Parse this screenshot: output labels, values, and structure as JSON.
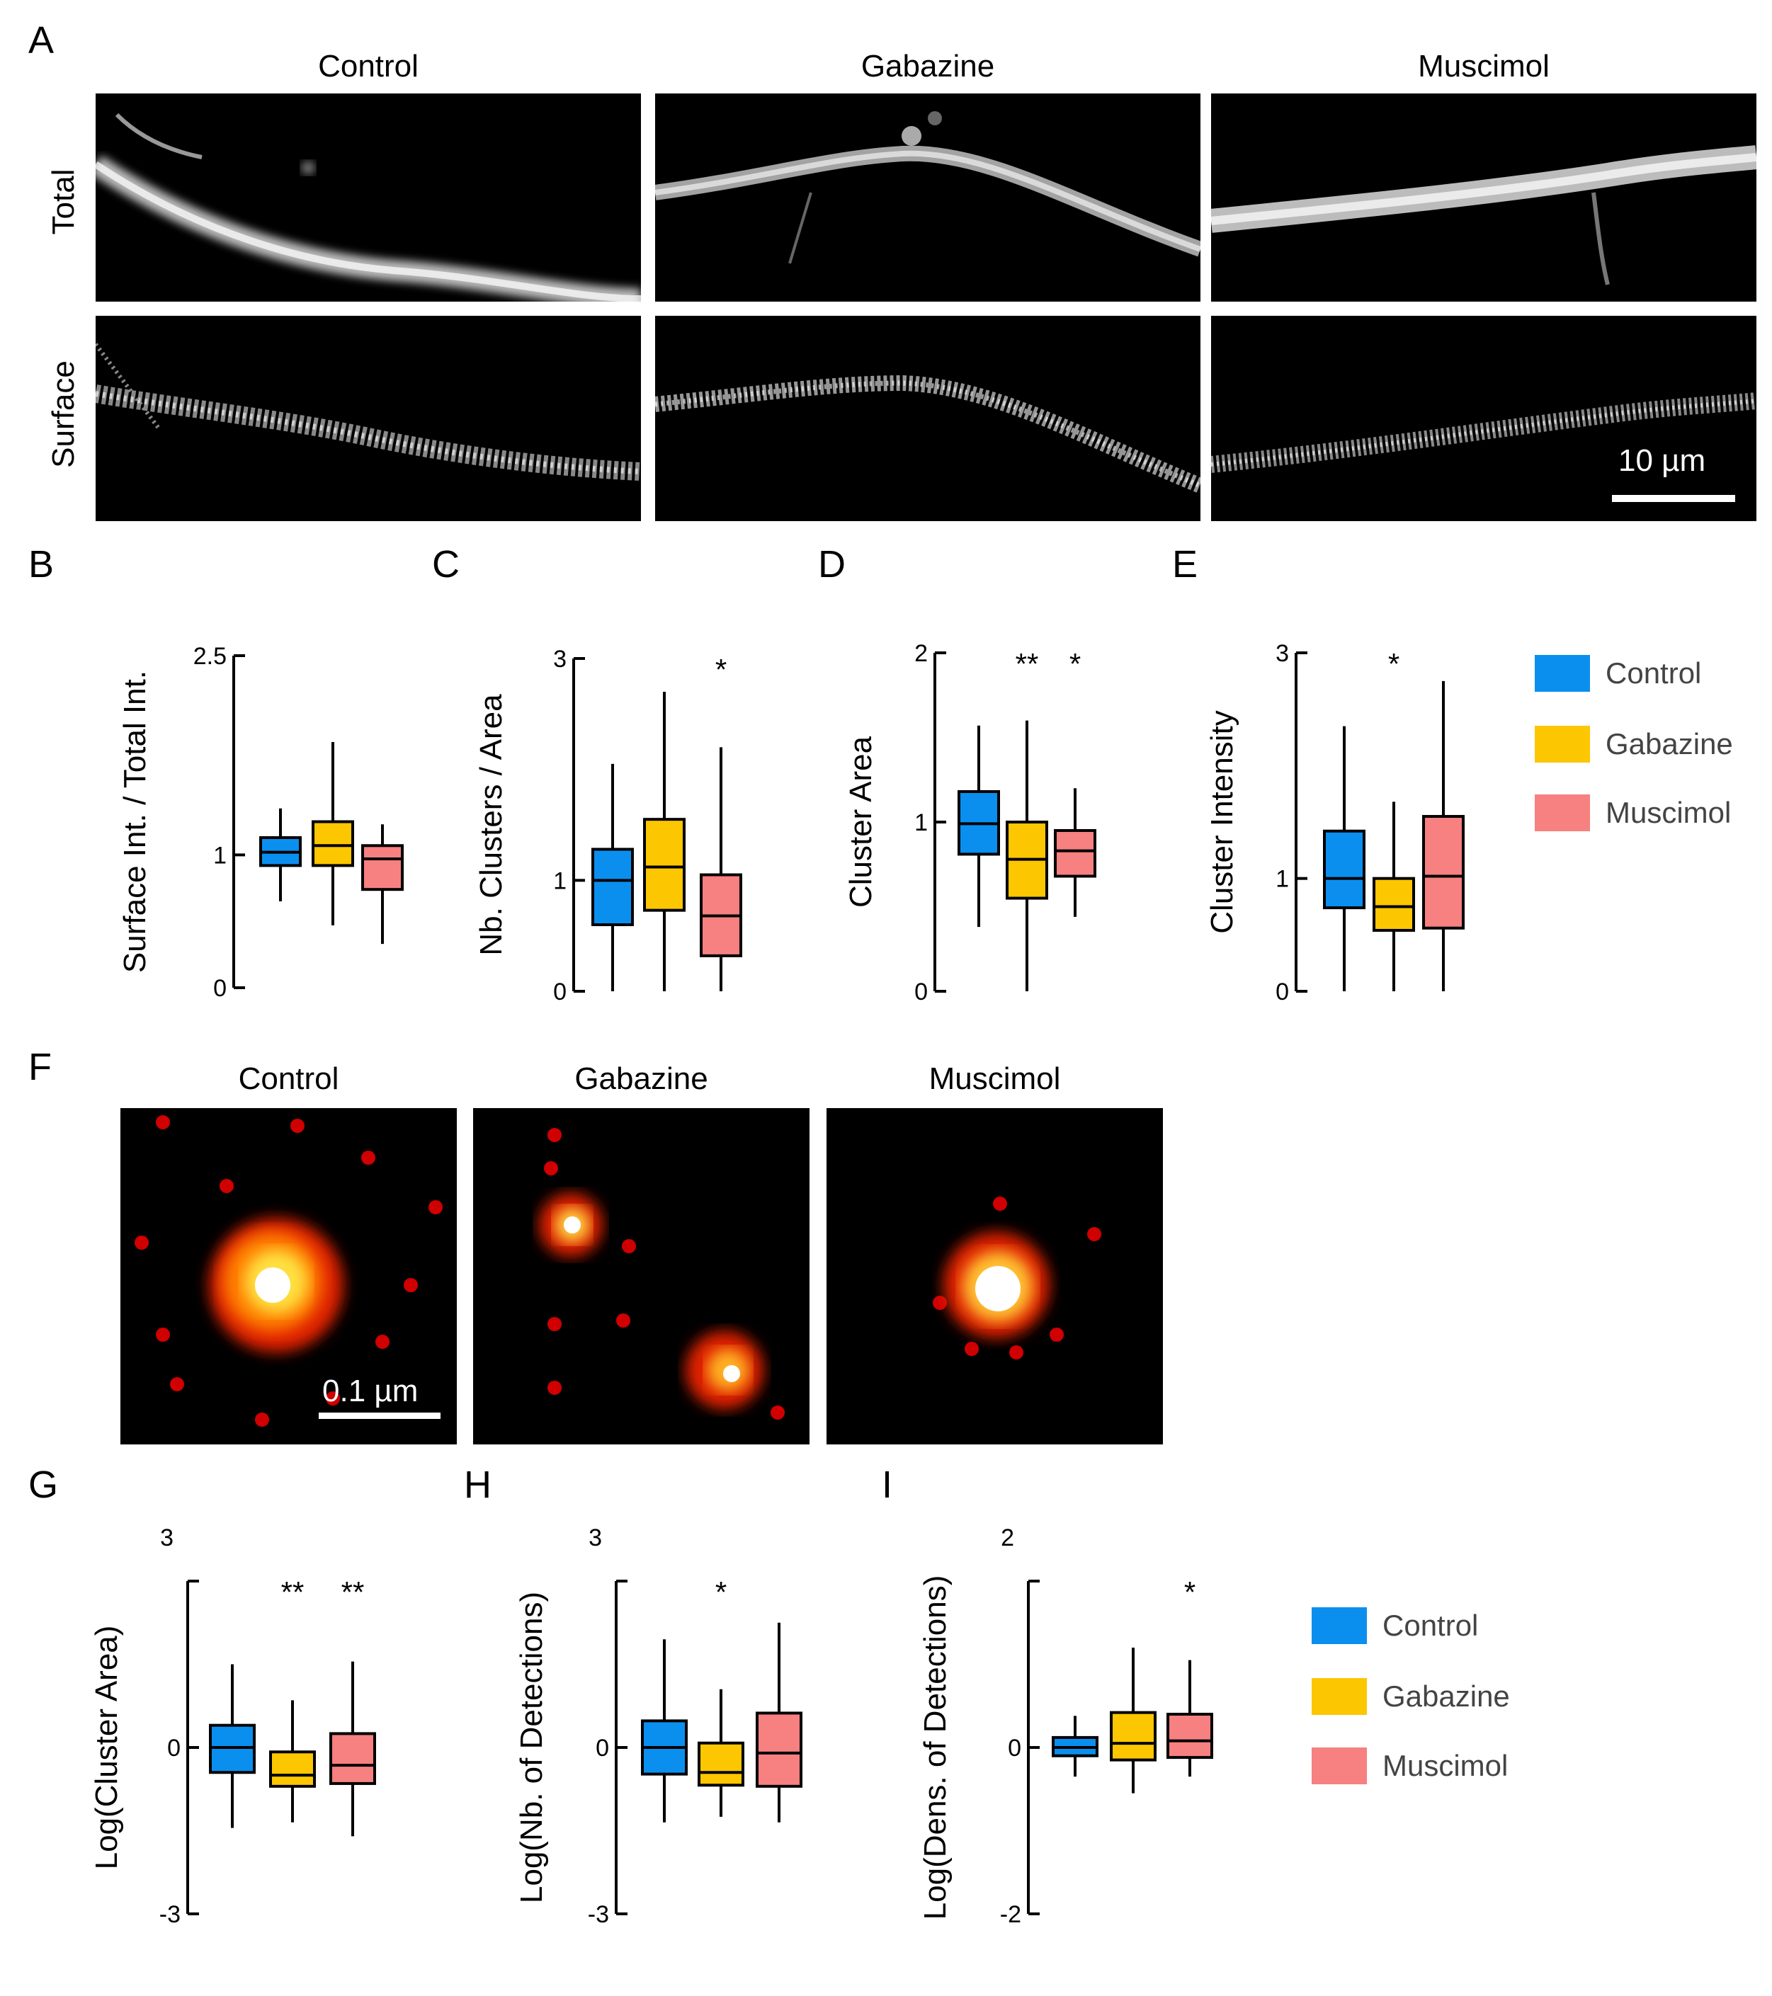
{
  "colors": {
    "control": "#0a8fef",
    "gabazine": "#fcc600",
    "muscimol": "#f78080"
  },
  "panel_A": {
    "letter": "A",
    "columns": [
      "Control",
      "Gabazine",
      "Muscimol"
    ],
    "rows": [
      "Total",
      "Surface"
    ],
    "scalebar": "10 µm"
  },
  "panel_F": {
    "letter": "F",
    "columns": [
      "Control",
      "Gabazine",
      "Muscimol"
    ],
    "scalebar": "0.1 µm"
  },
  "legend": [
    "Control",
    "Gabazine",
    "Muscimol"
  ],
  "chart_data": [
    {
      "panel": "B",
      "type": "box",
      "ylabel": "Surface Int. / Total Int.",
      "yticks": [
        "0",
        "1",
        "2.5"
      ],
      "ylim": [
        0,
        2.5
      ],
      "series": [
        {
          "name": "Control",
          "whisker_low": 0.65,
          "q1": 0.92,
          "median": 1.02,
          "q3": 1.13,
          "whisker_high": 1.35
        },
        {
          "name": "Gabazine",
          "whisker_low": 0.47,
          "q1": 0.92,
          "median": 1.07,
          "q3": 1.25,
          "whisker_high": 1.85
        },
        {
          "name": "Muscimol",
          "whisker_low": 0.33,
          "q1": 0.74,
          "median": 0.97,
          "q3": 1.07,
          "whisker_high": 1.23
        }
      ],
      "stars": [
        "",
        "",
        ""
      ]
    },
    {
      "panel": "C",
      "type": "box",
      "ylabel": "Nb. Clusters / Area",
      "yticks": [
        "0",
        "1",
        "3"
      ],
      "ylim": [
        0,
        3
      ],
      "series": [
        {
          "name": "Control",
          "whisker_low": 0.0,
          "q1": 0.6,
          "median": 1.0,
          "q3": 1.28,
          "whisker_high": 2.05
        },
        {
          "name": "Gabazine",
          "whisker_low": 0.0,
          "q1": 0.73,
          "median": 1.12,
          "q3": 1.55,
          "whisker_high": 2.7
        },
        {
          "name": "Muscimol",
          "whisker_low": 0.0,
          "q1": 0.32,
          "median": 0.68,
          "q3": 1.05,
          "whisker_high": 2.2
        }
      ],
      "stars": [
        "",
        "",
        "*"
      ]
    },
    {
      "panel": "D",
      "type": "box",
      "ylabel": "Cluster Area",
      "yticks": [
        "0",
        "1",
        "2"
      ],
      "ylim": [
        0,
        2
      ],
      "series": [
        {
          "name": "Control",
          "whisker_low": 0.38,
          "q1": 0.81,
          "median": 0.99,
          "q3": 1.18,
          "whisker_high": 1.57
        },
        {
          "name": "Gabazine",
          "whisker_low": 0.0,
          "q1": 0.55,
          "median": 0.78,
          "q3": 1.0,
          "whisker_high": 1.6
        },
        {
          "name": "Muscimol",
          "whisker_low": 0.44,
          "q1": 0.68,
          "median": 0.83,
          "q3": 0.95,
          "whisker_high": 1.2
        }
      ],
      "stars": [
        "",
        "**",
        "*"
      ]
    },
    {
      "panel": "E",
      "type": "box",
      "ylabel": "Cluster Intensity",
      "yticks": [
        "0",
        "1",
        "3"
      ],
      "ylim": [
        0,
        3
      ],
      "series": [
        {
          "name": "Control",
          "whisker_low": 0.0,
          "q1": 0.74,
          "median": 1.0,
          "q3": 1.42,
          "whisker_high": 2.35
        },
        {
          "name": "Gabazine",
          "whisker_low": 0.0,
          "q1": 0.54,
          "median": 0.75,
          "q3": 1.0,
          "whisker_high": 1.68
        },
        {
          "name": "Muscimol",
          "whisker_low": 0.0,
          "q1": 0.56,
          "median": 1.02,
          "q3": 1.55,
          "whisker_high": 2.75
        }
      ],
      "stars": [
        "",
        "*",
        ""
      ]
    },
    {
      "panel": "G",
      "type": "box",
      "ylabel": "Log(Cluster Area)",
      "yticks": [
        "-3",
        "0",
        "3"
      ],
      "ylim": [
        -3,
        3
      ],
      "series": [
        {
          "name": "Control",
          "whisker_low": -1.45,
          "q1": -0.45,
          "median": 0.0,
          "q3": 0.4,
          "whisker_high": 1.5
        },
        {
          "name": "Gabazine",
          "whisker_low": -1.35,
          "q1": -0.7,
          "median": -0.5,
          "q3": -0.08,
          "whisker_high": 0.85
        },
        {
          "name": "Muscimol",
          "whisker_low": -1.6,
          "q1": -0.65,
          "median": -0.32,
          "q3": 0.25,
          "whisker_high": 1.55
        }
      ],
      "stars": [
        "",
        "**",
        "**"
      ]
    },
    {
      "panel": "H",
      "type": "box",
      "ylabel": "Log(Nb. of Detections)",
      "yticks": [
        "-3",
        "0",
        "3"
      ],
      "ylim": [
        -3,
        3
      ],
      "series": [
        {
          "name": "Control",
          "whisker_low": -1.35,
          "q1": -0.48,
          "median": 0.0,
          "q3": 0.48,
          "whisker_high": 1.95
        },
        {
          "name": "Gabazine",
          "whisker_low": -1.25,
          "q1": -0.68,
          "median": -0.45,
          "q3": 0.08,
          "whisker_high": 1.05
        },
        {
          "name": "Muscimol",
          "whisker_low": -1.35,
          "q1": -0.7,
          "median": -0.1,
          "q3": 0.62,
          "whisker_high": 2.25
        }
      ],
      "stars": [
        "",
        "*",
        ""
      ]
    },
    {
      "panel": "I",
      "type": "box",
      "ylabel": "Log(Dens. of Detections)",
      "yticks": [
        "-2",
        "0",
        "2"
      ],
      "ylim": [
        -2,
        2
      ],
      "series": [
        {
          "name": "Control",
          "whisker_low": -0.35,
          "q1": -0.1,
          "median": 0.0,
          "q3": 0.12,
          "whisker_high": 0.38
        },
        {
          "name": "Gabazine",
          "whisker_low": -0.55,
          "q1": -0.15,
          "median": 0.05,
          "q3": 0.42,
          "whisker_high": 1.2
        },
        {
          "name": "Muscimol",
          "whisker_low": -0.35,
          "q1": -0.12,
          "median": 0.08,
          "q3": 0.4,
          "whisker_high": 1.05
        }
      ],
      "stars": [
        "",
        "",
        "*"
      ]
    }
  ],
  "panel_letters": {
    "B": "B",
    "C": "C",
    "D": "D",
    "E": "E",
    "G": "G",
    "H": "H",
    "I": "I"
  }
}
